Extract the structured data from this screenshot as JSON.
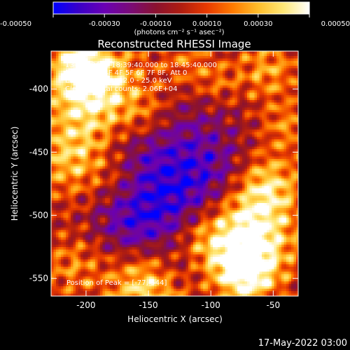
{
  "colorbar": {
    "ticks": [
      "-0.00050",
      "-0.00030",
      "-0.00010",
      "0.00010",
      "0.00030",
      "0.00050"
    ],
    "units_label": "(photons cm⁻² s⁻¹ asec⁻²)",
    "stops": [
      "#0000ff",
      "#3a00c8",
      "#6a00b4",
      "#7a0b78",
      "#8a1230",
      "#b01d10",
      "#e83a00",
      "#ff7a00",
      "#ffbd2a",
      "#ffe878",
      "#ffffff"
    ]
  },
  "chart_data": {
    "type": "heatmap",
    "title": "Reconstructed RHESSI Image",
    "xlabel": "Heliocentric X (arcsec)",
    "ylabel": "Heliocentric Y (arcsec)",
    "xlim": [
      -228,
      -30
    ],
    "ylim": [
      -564,
      -370
    ],
    "xticks": [
      -200,
      -150,
      -100,
      -50
    ],
    "yticks": [
      -400,
      -450,
      -500,
      -550
    ],
    "value_range": [
      -0.0005,
      0.0005
    ],
    "annotations": [
      "13-Oct-2013 18:39:40.000 to 18:45:40.000",
      "Detectors: 3F 4F 5F 6F 7F 8F, Att 0",
      "Energy Range: 12.0 - 25.0 keV",
      "Clean     Total counts: 2.06E+04"
    ],
    "peak_label": "Position of Peak = [-77,-544]",
    "peak": [
      -77,
      -544
    ],
    "hot_regions": [
      {
        "x": -192,
        "y": -400,
        "w": 26,
        "amp": 0.00055
      },
      {
        "x": -205,
        "y": -382,
        "w": 14,
        "amp": 0.0003
      },
      {
        "x": -150,
        "y": -420,
        "w": 16,
        "amp": 0.0002
      },
      {
        "x": -120,
        "y": -380,
        "w": 16,
        "amp": 0.0002
      },
      {
        "x": -95,
        "y": -395,
        "w": 12,
        "amp": 0.00015
      },
      {
        "x": -55,
        "y": -385,
        "w": 18,
        "amp": 0.00025
      },
      {
        "x": -40,
        "y": -430,
        "w": 14,
        "amp": 0.0002
      },
      {
        "x": -210,
        "y": -455,
        "w": 22,
        "amp": 0.00035
      },
      {
        "x": -175,
        "y": -470,
        "w": 14,
        "amp": 0.00012
      },
      {
        "x": -150,
        "y": -555,
        "w": 22,
        "amp": 0.00045
      },
      {
        "x": -210,
        "y": -540,
        "w": 18,
        "amp": 0.0002
      },
      {
        "x": -110,
        "y": -520,
        "w": 16,
        "amp": 0.0002
      },
      {
        "x": -75,
        "y": -515,
        "w": 28,
        "amp": 0.0006
      },
      {
        "x": -55,
        "y": -475,
        "w": 18,
        "amp": 0.0003
      },
      {
        "x": -72,
        "y": -545,
        "w": 16,
        "amp": 0.0004
      }
    ],
    "cold_regions": [
      {
        "x": -140,
        "y": -450,
        "w": 40,
        "amp": 0.00025
      },
      {
        "x": -130,
        "y": -500,
        "w": 34,
        "amp": 0.0003
      },
      {
        "x": -165,
        "y": -510,
        "w": 18,
        "amp": 0.00015
      },
      {
        "x": -95,
        "y": -470,
        "w": 22,
        "amp": 0.00015
      },
      {
        "x": -125,
        "y": -545,
        "w": 14,
        "amp": 0.00015
      }
    ]
  },
  "footer": {
    "timestamp": "17-May-2022 03:00"
  }
}
